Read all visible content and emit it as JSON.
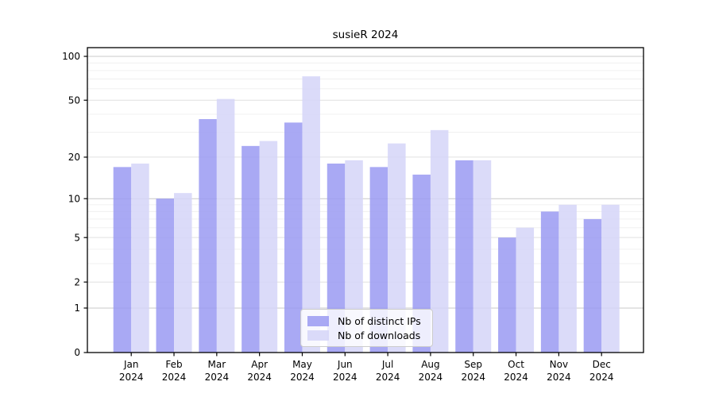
{
  "chart_data": {
    "type": "bar",
    "title": "susieR 2024",
    "categories": [
      "Jan 2024",
      "Feb 2024",
      "Mar 2024",
      "Apr 2024",
      "May 2024",
      "Jun 2024",
      "Jul 2024",
      "Aug 2024",
      "Sep 2024",
      "Oct 2024",
      "Nov 2024",
      "Dec 2024"
    ],
    "x_tick_months": [
      "Jan",
      "Feb",
      "Mar",
      "Apr",
      "May",
      "Jun",
      "Jul",
      "Aug",
      "Sep",
      "Oct",
      "Nov",
      "Dec"
    ],
    "x_tick_year": "2024",
    "series": [
      {
        "name": "Nb of distinct IPs",
        "color": "#9a9af2",
        "values": [
          17,
          10,
          37,
          24,
          35,
          18,
          17,
          15,
          19,
          5,
          8,
          7
        ]
      },
      {
        "name": "Nb of downloads",
        "color": "#d5d5f8",
        "values": [
          18,
          11,
          51,
          26,
          73,
          19,
          25,
          31,
          19,
          6,
          9,
          9
        ]
      }
    ],
    "bar_fill_opacity": 0.85,
    "yscale": "log1p",
    "ylim": [
      0,
      114.7
    ],
    "yticks": [
      100,
      50,
      20,
      10,
      5,
      2,
      1,
      0
    ],
    "minor_yticks": [
      90,
      80,
      70,
      60,
      40,
      30,
      9,
      8,
      7,
      6,
      4,
      3
    ],
    "grid": true,
    "legend_position": "lower center",
    "colors": {
      "bar_dark_rendered": "#a9a9f4",
      "bar_light_rendered": "#dbdbf9",
      "grid_major": "#c9c9c9",
      "grid_labeled": "#e0e0e0",
      "grid_minor": "#f0f0f0",
      "spine": "#000000"
    }
  }
}
